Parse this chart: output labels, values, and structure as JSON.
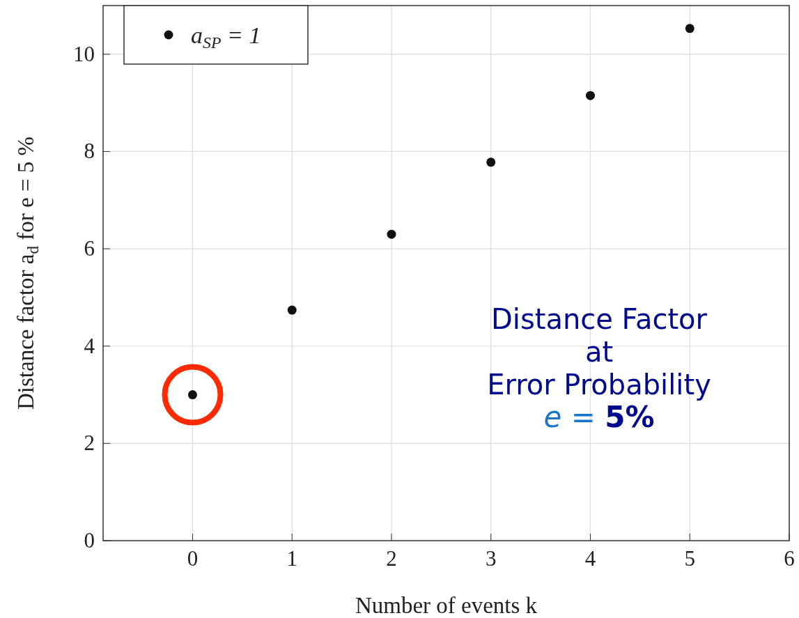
{
  "chart_data": {
    "type": "scatter",
    "xlabel": "Number of events k",
    "ylabel": "Distance factor a$_{d}$ for e = 5 %",
    "x": [
      0,
      1,
      2,
      3,
      4,
      5
    ],
    "series": [
      {
        "name": "a$_{SP}$ = 1",
        "color": "#111111",
        "values": [
          3.0,
          4.74,
          6.3,
          7.78,
          9.15,
          10.53
        ]
      }
    ],
    "xlim": [
      -0.9,
      6
    ],
    "xticks": [
      0,
      1,
      2,
      3,
      4,
      5,
      6
    ],
    "ylim": [
      0,
      11
    ],
    "yticks": [
      0,
      2,
      4,
      6,
      8,
      10
    ],
    "grid": true,
    "legend": "top left",
    "marker": "circle",
    "annotations": [
      "Distance Factor",
      "at",
      "Error Probability",
      "e = 5%"
    ]
  }
}
